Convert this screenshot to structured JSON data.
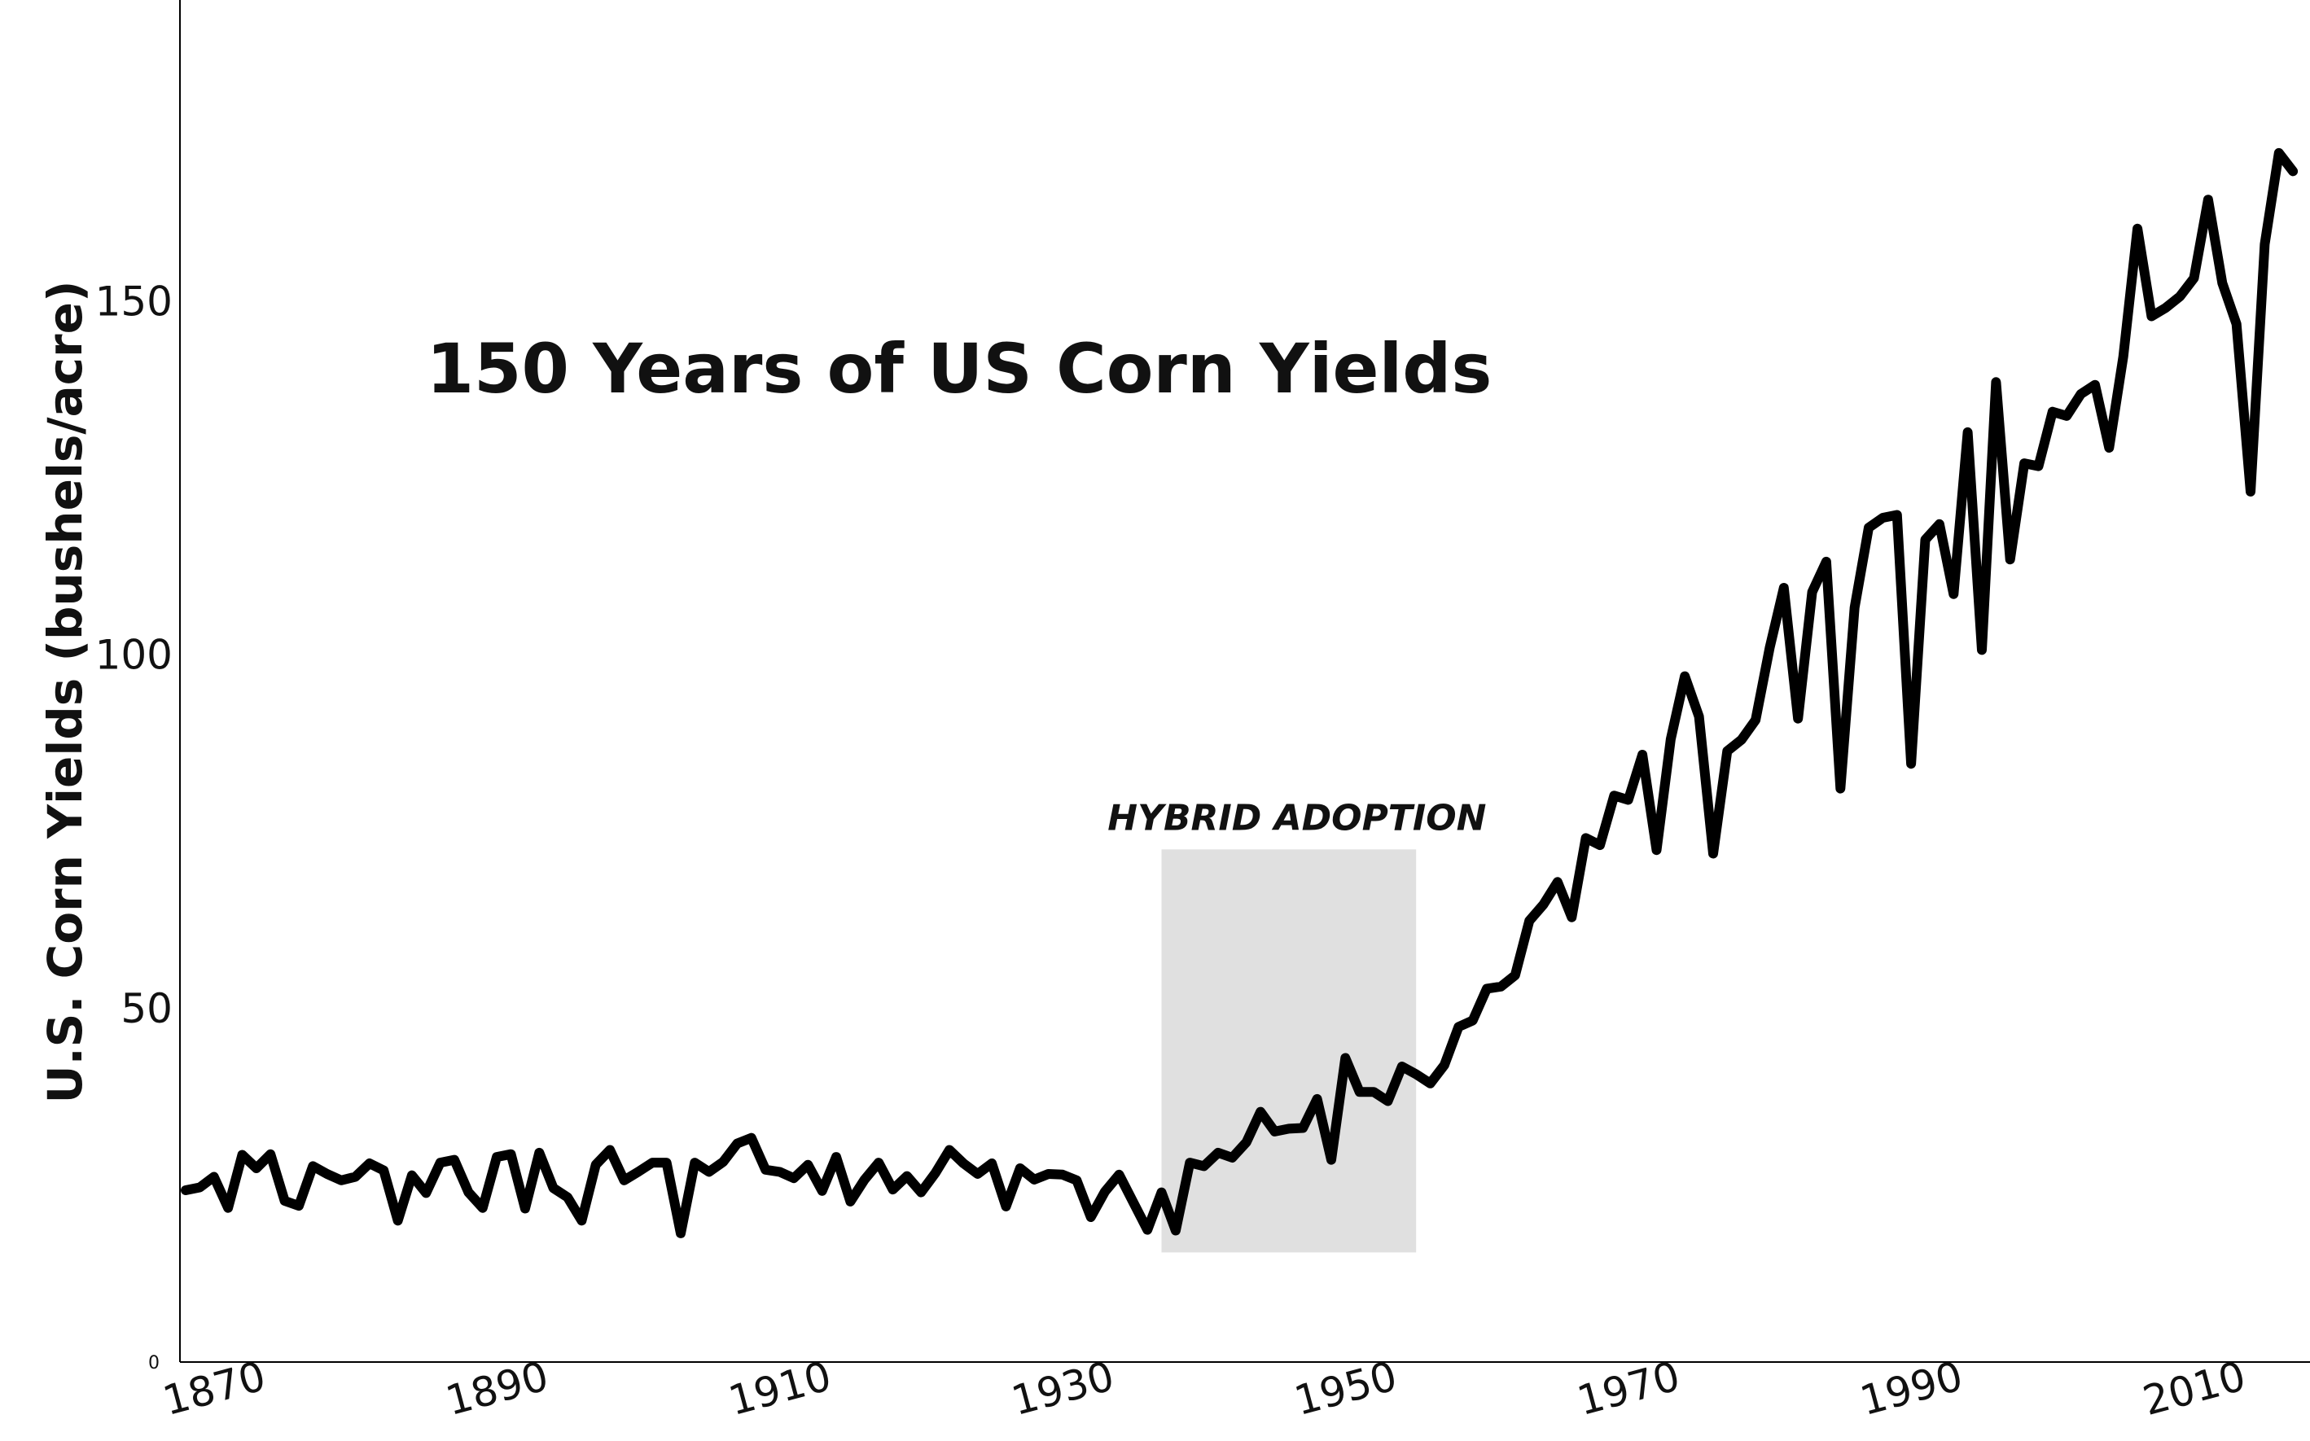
{
  "chart_data": {
    "type": "line",
    "title": "150 Years of US Corn Yields",
    "xlabel": "",
    "ylabel": "U.S. Corn Yields (bushels/acre)",
    "xlim": [
      1866,
      2015
    ],
    "ylim": [
      0,
      192
    ],
    "grid": false,
    "legend": "none",
    "x_ticks": [
      "1870",
      "1890",
      "1910",
      "1930",
      "1950",
      "1970",
      "1990",
      "2010"
    ],
    "y_ticks": [
      "0",
      "50",
      "100",
      "150"
    ],
    "annotation": {
      "label": "HYBRID ADOPTION",
      "x_range": [
        1935,
        1953
      ],
      "y_range": [
        15.5,
        72.5
      ],
      "color": "#e0e0e0"
    },
    "line_color": "#000000",
    "series": [
      {
        "name": "U.S. Corn Yields",
        "x_start": 1866,
        "values": [
          24.3,
          24.7,
          26.2,
          21.8,
          29.3,
          27.4,
          29.4,
          22.8,
          22.1,
          27.7,
          26.6,
          25.7,
          26.2,
          28.1,
          27.1,
          20.0,
          26.4,
          23.9,
          28.2,
          28.6,
          24.0,
          21.8,
          29.0,
          29.4,
          21.7,
          29.6,
          24.6,
          23.3,
          20.0,
          27.9,
          30.0,
          25.7,
          26.9,
          28.2,
          28.2,
          18.2,
          28.2,
          26.9,
          28.3,
          30.9,
          31.7,
          27.2,
          26.9,
          26.0,
          27.9,
          24.2,
          29.0,
          22.7,
          25.8,
          28.2,
          24.4,
          26.3,
          24.0,
          26.7,
          30.0,
          28.1,
          26.6,
          28.1,
          22.0,
          27.4,
          25.8,
          26.6,
          26.5,
          25.7,
          20.5,
          24.1,
          26.5,
          22.6,
          18.7,
          24.0,
          18.6,
          28.2,
          27.7,
          29.6,
          28.9,
          31.1,
          35.4,
          32.6,
          33.0,
          33.1,
          37.2,
          28.6,
          43.0,
          38.2,
          38.2,
          36.9,
          41.8,
          40.7,
          39.4,
          42.0,
          47.4,
          48.3,
          52.8,
          53.1,
          54.7,
          62.4,
          64.7,
          67.9,
          62.9,
          74.1,
          73.1,
          80.1,
          79.5,
          85.9,
          72.4,
          88.1,
          97.0,
          91.3,
          71.9,
          86.4,
          88.0,
          90.8,
          101.0,
          109.5,
          91.0,
          108.9,
          113.2,
          81.1,
          106.7,
          118.0,
          119.4,
          119.8,
          84.6,
          116.3,
          118.5,
          108.6,
          131.5,
          100.7,
          138.6,
          113.5,
          127.1,
          126.7,
          134.4,
          133.8,
          136.9,
          138.2,
          129.3,
          142.2,
          160.3,
          147.9,
          149.1,
          150.7,
          153.3,
          164.4,
          152.6,
          146.8,
          123.1,
          158.1,
          171.0,
          168.4
        ]
      }
    ]
  }
}
